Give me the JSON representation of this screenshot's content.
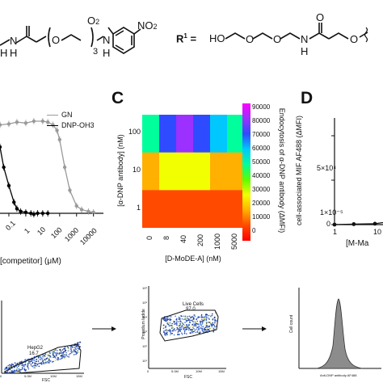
{
  "structures": {
    "left_labels": {
      "o2": "O",
      "o2_sub": "2",
      "no2": "NO",
      "no2_sub": "2",
      "o": "O",
      "nh": "N",
      "h": "H",
      "n3": "3",
      "n_amide": "N",
      "h_amide": "H",
      "h2": "H"
    },
    "right_labels": {
      "r1": "R",
      "r1_sup": "1",
      "eq": " =",
      "ho": "HO",
      "o1": "O",
      "o2": "O",
      "n": "N",
      "h": "H",
      "o_carbonyl": "O",
      "o3": "O"
    }
  },
  "panel_b": {
    "legend": [
      "GN",
      "DNP-OH3"
    ],
    "xlabel": "[competitor] (μM)",
    "xticks": [
      "0.1",
      "1",
      "10",
      "100",
      "1000",
      "10000"
    ],
    "series_colors": {
      "GN": "#9a9a9a",
      "DNP-OH3": "#000000"
    }
  },
  "panel_c": {
    "letter": "C",
    "ylabel": "[α-DNP antibody] (nM)",
    "xlabel": "[D-MoDE-A] (nM)",
    "yticks": [
      "100",
      "10",
      "1"
    ],
    "xticks": [
      "0",
      "8",
      "40",
      "200",
      "1000",
      "5000"
    ],
    "colorbar_label": "Endocytosis of α-DNP antibody (ΔMFI)",
    "colorbar_ticks": [
      "90000",
      "80000",
      "70000",
      "60000",
      "50000",
      "40000",
      "30000",
      "20000",
      "10000",
      "0"
    ]
  },
  "panel_d": {
    "letter": "D",
    "ylabel": "cell-associated MIF AF488 (ΔMFI)",
    "yticks": [
      "1×10⁻⁵",
      "5×10⁴",
      "0"
    ],
    "xlabel": "[M-Ma",
    "xticks": [
      "1",
      "10"
    ]
  },
  "flow": {
    "plot1": {
      "xlabel": "FSC",
      "gate_name": "HepG2",
      "gate_value": "16.7",
      "xticks": [
        "0",
        "5.0M",
        "10M",
        "15M"
      ]
    },
    "plot2": {
      "xlabel": "FSC",
      "ylabel": "Propidium Iodide",
      "gate_name": "Live Cells",
      "gate_value": "97.0",
      "xticks": [
        "0",
        "5.0M",
        "10M",
        "15M"
      ],
      "yticks": [
        "10⁶",
        "10⁵",
        "10⁴",
        "10³",
        "10²",
        "10¹"
      ]
    },
    "plot3": {
      "xlabel": "Anti-DNP antibody  AF488",
      "ylabel": "Cell count"
    }
  },
  "chart_data": [
    {
      "type": "line",
      "xscale": "log",
      "xlabel": "[competitor] (μM)",
      "xlim": [
        0.03,
        20000
      ],
      "series": [
        {
          "name": "GN",
          "x": [
            0.03,
            0.1,
            0.3,
            1,
            3,
            10,
            20,
            40,
            70,
            100,
            200,
            400,
            1000,
            2000,
            5000,
            10000
          ],
          "y": [
            0.96,
            0.97,
            0.99,
            0.98,
            1.0,
            1.0,
            0.99,
            0.96,
            0.9,
            0.8,
            0.5,
            0.25,
            0.08,
            0.04,
            0.02,
            0.01
          ]
        },
        {
          "name": "DNP-OH3",
          "x": [
            0.03,
            0.05,
            0.1,
            0.2,
            0.3,
            0.5,
            1,
            2,
            3,
            5,
            10,
            20
          ],
          "y": [
            0.72,
            0.5,
            0.3,
            0.12,
            0.05,
            0.02,
            0.01,
            0.0,
            -0.01,
            0.0,
            0.0,
            0.0
          ]
        }
      ]
    },
    {
      "type": "heatmap",
      "x": [
        "0",
        "8",
        "40",
        "200",
        "1000",
        "5000"
      ],
      "y": [
        "100",
        "10",
        "1"
      ],
      "values": [
        [
          48000,
          72000,
          82000,
          74000,
          58000,
          54000
        ],
        [
          22000,
          30000,
          30000,
          28000,
          24000,
          22000
        ],
        [
          10000,
          11000,
          11000,
          11000,
          10000,
          10000
        ]
      ],
      "zlim": [
        0,
        90000
      ],
      "xlabel": "[D-MoDE-A] (nM)",
      "ylabel": "[α-DNP antibody] (nM)",
      "colorbar_label": "Endocytosis of α-DNP antibody (ΔMFI)"
    },
    {
      "type": "scatter",
      "ylabel": "cell-associated MIF AF488 (ΔMFI)",
      "ylim": [
        0,
        120000
      ],
      "x": [
        1,
        3,
        10,
        30
      ],
      "y": [
        0,
        500,
        1000,
        4000
      ]
    }
  ]
}
